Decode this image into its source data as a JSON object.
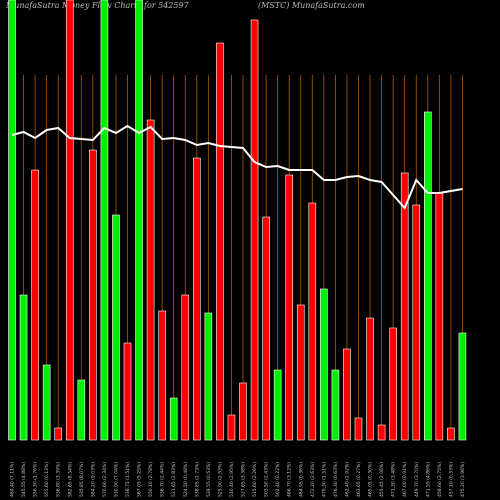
{
  "chart_data": {
    "type": "bar",
    "title": "MunafaSutra  Money Flow  Charts for 542597",
    "subtitle": "(MSTC) MunafaSutra.com",
    "categories": [
      "469.40 (7.11%)",
      "545.55 (4.88%)",
      "556.30 (1.76%)",
      "555.60 (0.13%)",
      "536.80 (3.39%)",
      "582.65 (8.54%)",
      "535.85 (8.07%)",
      "584.20 (9.03%)",
      "570.60 (2.34%)",
      "530.90 (7.04%)",
      "538.75 (1.51%)",
      "567.05 (5.25%)",
      "550.10 (2.78%)",
      "536.70 (2.44%)",
      "521.65 (2.83%)",
      "524.50 (0.48%)",
      "538.85 (2.73%)",
      "539.55 (0.53%)",
      "525.90 (2.53%)",
      "510.40 (2.95%)",
      "527.65 (3.38%)",
      "515.60 (2.26%)",
      "503.50 (2.43%)",
      "502.40 (0.22%)",
      "486.70 (3.12%)",
      "484.95 (0.36%)",
      "472.20 (2.63%)",
      "479.30 (1.51%)",
      "476.30 (0.63%)",
      "462.40 (2.92%)",
      "463.65 (0.27%)",
      "465.05 (0.30%)",
      "455.45 (2.06%)",
      "471.30 (3.48%)",
      "467.00 (0.91%)",
      "449.70 (3.70%)",
      "471.55 (4.86%)",
      "458.60 (2.75%)",
      "457.10 (0.33%)",
      "475.20 (3.96%)"
    ],
    "series": [
      {
        "name": "Money Flow",
        "values": [
          440,
          145,
          270,
          75,
          12,
          440,
          60,
          290,
          440,
          225,
          97,
          440,
          320,
          129,
          42,
          145,
          282,
          127,
          397,
          25,
          57,
          420,
          223,
          70,
          265,
          135,
          237,
          151,
          70,
          91,
          22,
          122,
          15,
          112,
          267,
          235,
          328,
          247,
          12,
          107
        ],
        "colors": [
          "#00ee00",
          "#00ee00",
          "#ff0000",
          "#00ee00",
          "#ff0000",
          "#ff0000",
          "#00ee00",
          "#ff0000",
          "#00ee00",
          "#00ee00",
          "#ff0000",
          "#00ee00",
          "#ff0000",
          "#ff0000",
          "#00ee00",
          "#ff0000",
          "#ff0000",
          "#00ee00",
          "#ff0000",
          "#ff0000",
          "#ff0000",
          "#ff0000",
          "#ff0000",
          "#00ee00",
          "#ff0000",
          "#ff0000",
          "#ff0000",
          "#00ee00",
          "#00ee00",
          "#ff0000",
          "#ff0000",
          "#ff0000",
          "#ff0000",
          "#ff0000",
          "#ff0000",
          "#ff0000",
          "#00ee00",
          "#ff0000",
          "#ff0000",
          "#00ee00"
        ]
      },
      {
        "name": "Price",
        "color": "#ffffff",
        "values": [
          305,
          308,
          302,
          310,
          312,
          302,
          301,
          300,
          312,
          307,
          314,
          307,
          313,
          301,
          302,
          300,
          295,
          297,
          294,
          293,
          292,
          278,
          273,
          274,
          270,
          270,
          270,
          260,
          260,
          263,
          264,
          260,
          258,
          245,
          232,
          260,
          247,
          247,
          249,
          251
        ]
      }
    ],
    "ylim": [
      0,
      440
    ],
    "grid_color": "#b35900"
  }
}
